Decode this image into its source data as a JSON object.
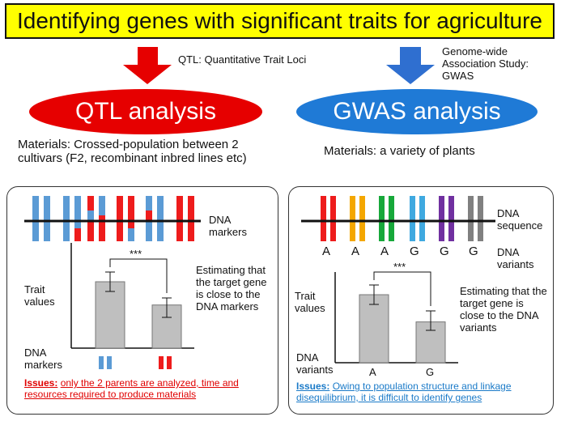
{
  "title": "Identifying genes with significant traits for agriculture",
  "qtl": {
    "arrow_note": "QTL: Quantitative Trait Loci",
    "heading": "QTL analysis",
    "materials": "Materials: Crossed-population between 2 cultivars (F2, recombinant inbred lines etc)",
    "dna_markers_label": "DNA markers",
    "significance": "***",
    "trait_values_label": "Trait values",
    "estimate_text": "Estimating that the target gene is close to the DNA markers",
    "dna_markers_bottom_label": "DNA markers",
    "issues_label": "Issues:",
    "issues_text": "only the 2 parents are analyzed, time and resources required to produce materials",
    "bar_values": [
      1.0,
      0.65
    ]
  },
  "gwas": {
    "arrow_note": "Genome-wide Association Study: GWAS",
    "heading": "GWAS analysis",
    "materials": "Materials: a variety of plants",
    "dna_sequence_label": "DNA sequence",
    "variant_letters": [
      "A",
      "A",
      "A",
      "G",
      "G",
      "G"
    ],
    "dna_variants_label": "DNA variants",
    "significance": "***",
    "trait_values_label": "Trait values",
    "estimate_text": "Estimating that the target gene is close to the DNA variants",
    "dna_variants_bottom_label": "DNA variants",
    "x_categories": [
      "A",
      "G"
    ],
    "issues_label": "Issues:",
    "issues_text": "Owing to population structure and linkage disequilibrium, it is difficult to identify genes",
    "bar_values": [
      1.0,
      0.6
    ]
  },
  "colors": {
    "title_bg": "#ffff00",
    "qtl_ellipse": "#e60000",
    "gwas_ellipse": "#1f7ad6",
    "qtl_arrow": "#e60000",
    "gwas_arrow": "#2f6fd0",
    "chrom_blue": "#5b9bd5",
    "chrom_red": "#ee1c1c",
    "bar_fill": "#bfbfbf",
    "issue_red": "#e00000",
    "issue_blue": "#1a7ac8"
  }
}
